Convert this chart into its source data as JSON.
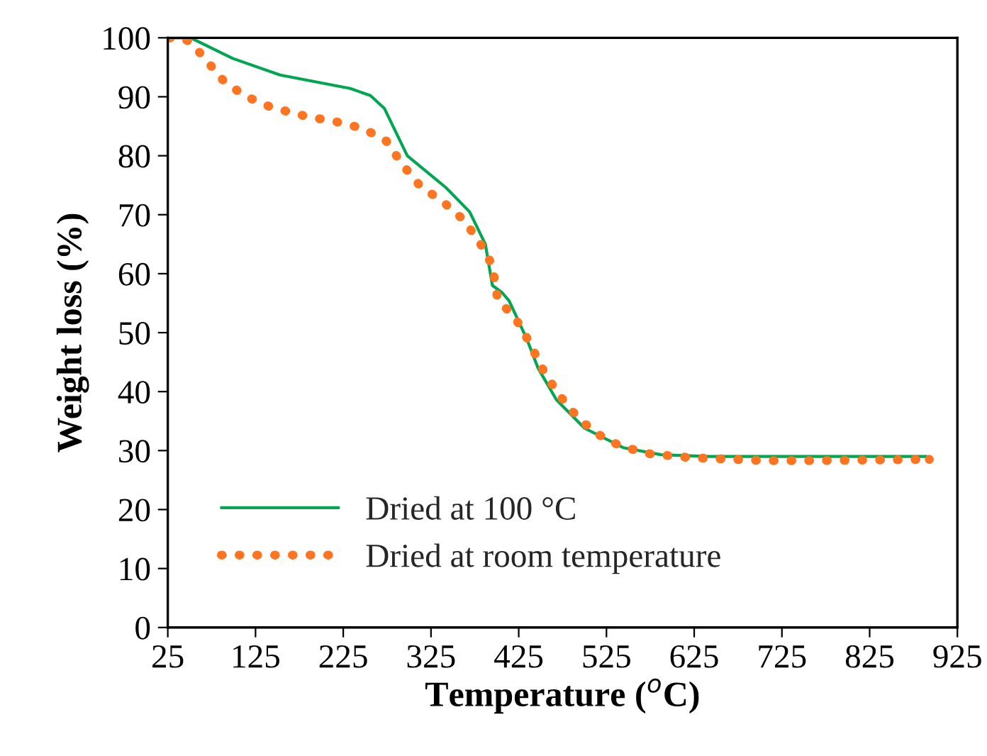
{
  "chart_data": {
    "type": "line",
    "xlabel": "Temperature ($^{o}$C)",
    "ylabel": "Weight loss (%)",
    "xlim": [
      25,
      925
    ],
    "xticks": [
      25,
      125,
      225,
      325,
      425,
      525,
      625,
      725,
      825,
      925
    ],
    "ylim": [
      0,
      100
    ],
    "yticks": [
      0,
      10,
      20,
      30,
      40,
      50,
      60,
      70,
      80,
      90,
      100
    ],
    "grid": false,
    "legend": "bottom left",
    "series": [
      {
        "name": "Dried at 100 °C",
        "color": "#00a651",
        "line_style": "solid",
        "x": [
          25,
          51,
          99,
          153,
          233,
          256,
          272,
          298,
          342,
          369,
          387,
          395,
          406,
          414,
          434,
          447,
          468,
          500,
          544,
          587,
          641,
          750,
          890
        ],
        "values": [
          100,
          100,
          96.5,
          93.7,
          91.4,
          90.2,
          88,
          80,
          74.6,
          70.5,
          65,
          58,
          56.8,
          55.4,
          49,
          44,
          38.6,
          33.8,
          30.5,
          29.3,
          29,
          29,
          29
        ]
      },
      {
        "name": "Dried at room temperature",
        "color": "#ff7420",
        "line_style": "dotted",
        "x": [
          27,
          40,
          51,
          70,
          88,
          112,
          143,
          185,
          216,
          248,
          274,
          293,
          313,
          337,
          361,
          379,
          395,
          401,
          421,
          437,
          452,
          469,
          489,
          511,
          539,
          571,
          620,
          705,
          765,
          825,
          893
        ],
        "values": [
          100,
          100,
          99.3,
          96,
          92.8,
          90.2,
          88.2,
          86.6,
          85.8,
          84.6,
          82.5,
          78.4,
          74.8,
          72.4,
          69.3,
          65.7,
          61.4,
          55.6,
          52.5,
          48.4,
          43.9,
          39.8,
          36.2,
          33.1,
          30.9,
          29.5,
          28.8,
          28.3,
          28.3,
          28.4,
          28.5
        ]
      }
    ]
  }
}
